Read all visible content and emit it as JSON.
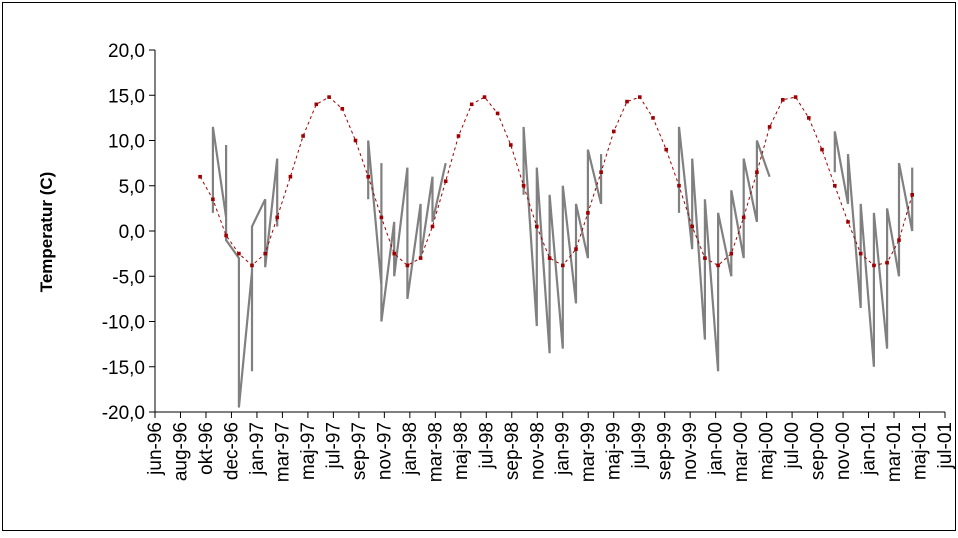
{
  "chart_data": {
    "type": "line",
    "title": "",
    "xlabel": "",
    "ylabel": "Temperatur (C)",
    "ylim": [
      -20,
      20
    ],
    "y_ticks": [
      20,
      15,
      10,
      5,
      0,
      -5,
      -10,
      -15,
      -20
    ],
    "y_tick_labels": [
      "20,0",
      "15,0",
      "10,0",
      "5,0",
      "0,0",
      "-5,0",
      "-10,0",
      "-15,0",
      "-20,0"
    ],
    "x_tick_labels": [
      "jun-96",
      "aug-96",
      "okt-96",
      "dec-96",
      "jan-97",
      "mar-97",
      "maj-97",
      "jul-97",
      "sep-97",
      "nov-97",
      "jan-98",
      "mar-98",
      "maj-98",
      "jul-98",
      "sep-98",
      "nov-98",
      "jan-99",
      "mar-99",
      "maj-99",
      "jul-99",
      "sep-99",
      "nov-99",
      "jan-00",
      "mar-00",
      "maj-00",
      "jul-00",
      "sep-00",
      "nov-00",
      "jan-01",
      "mar-01",
      "maj-01",
      "jul-01"
    ],
    "grid": false,
    "legend": "none",
    "colors": {
      "measured": "#808080",
      "model": "#a00000",
      "frame": "#000000"
    },
    "series": [
      {
        "style": "measured",
        "segments": [
          {
            "x": [
              "1996-10",
              "1996-10",
              "1996-11",
              "1996-11",
              "1996-11",
              "1996-12",
              "1996-12",
              "1996-12",
              "1997-01",
              "1997-01",
              "1997-01",
              "1997-02",
              "1997-02",
              "1997-03",
              "1997-03"
            ],
            "y": [
              2.0,
              11.5,
              1.5,
              9.5,
              -1.0,
              -3.0,
              -11.0,
              -19.5,
              -4.5,
              -15.5,
              0.5,
              3.5,
              -4.0,
              8.0,
              0.5
            ]
          },
          {
            "x": [
              "1997-10",
              "1997-10",
              "1997-11",
              "1997-11",
              "1997-11",
              "1997-12",
              "1997-12",
              "1998-01",
              "1998-01",
              "1998-02",
              "1998-02",
              "1998-03",
              "1998-03",
              "1998-04"
            ],
            "y": [
              3.5,
              10.0,
              -6.0,
              7.5,
              -10.0,
              1.0,
              -5.0,
              7.0,
              -7.5,
              3.0,
              -3.0,
              6.0,
              1.0,
              7.5
            ]
          },
          {
            "x": [
              "1998-10",
              "1998-10",
              "1998-11",
              "1998-11",
              "1998-12",
              "1998-12",
              "1999-01",
              "1999-01",
              "1999-02",
              "1999-02",
              "1999-03",
              "1999-03",
              "1999-04",
              "1999-04"
            ],
            "y": [
              4.0,
              11.5,
              -10.5,
              7.0,
              -13.5,
              4.0,
              -13.0,
              5.0,
              -8.0,
              3.0,
              -3.0,
              9.0,
              3.0,
              8.5
            ]
          },
          {
            "x": [
              "1999-10",
              "1999-10",
              "1999-11",
              "1999-11",
              "1999-12",
              "1999-12",
              "2000-01",
              "2000-01",
              "2000-02",
              "2000-02",
              "2000-03",
              "2000-03",
              "2000-04",
              "2000-04",
              "2000-05"
            ],
            "y": [
              2.0,
              11.5,
              -2.0,
              8.0,
              -12.0,
              3.5,
              -15.5,
              2.0,
              -5.0,
              4.5,
              -3.0,
              8.0,
              1.0,
              10.0,
              6.0
            ]
          },
          {
            "x": [
              "2000-10",
              "2000-10",
              "2000-11",
              "2000-11",
              "2000-12",
              "2000-12",
              "2001-01",
              "2001-01",
              "2001-02",
              "2001-02",
              "2001-03",
              "2001-03",
              "2001-04",
              "2001-04"
            ],
            "y": [
              6.5,
              11.0,
              3.0,
              8.5,
              -8.5,
              3.0,
              -15.0,
              2.0,
              -13.0,
              2.5,
              -5.0,
              7.5,
              0.0,
              7.0
            ]
          }
        ]
      },
      {
        "style": "model",
        "x": [
          "1996-09",
          "1996-10",
          "1996-11",
          "1996-12",
          "1997-01",
          "1997-02",
          "1997-03",
          "1997-04",
          "1997-05",
          "1997-06",
          "1997-07",
          "1997-08",
          "1997-09",
          "1997-10",
          "1997-11",
          "1997-12",
          "1998-01",
          "1998-02",
          "1998-03",
          "1998-04",
          "1998-05",
          "1998-06",
          "1998-07",
          "1998-08",
          "1998-09",
          "1998-10",
          "1998-11",
          "1998-12",
          "1999-01",
          "1999-02",
          "1999-03",
          "1999-04",
          "1999-05",
          "1999-06",
          "1999-07",
          "1999-08",
          "1999-09",
          "1999-10",
          "1999-11",
          "1999-12",
          "2000-01",
          "2000-02",
          "2000-03",
          "2000-04",
          "2000-05",
          "2000-06",
          "2000-07",
          "2000-08",
          "2000-09",
          "2000-10",
          "2000-11",
          "2000-12",
          "2001-01",
          "2001-02",
          "2001-03",
          "2001-04"
        ],
        "y": [
          6.0,
          3.5,
          -0.5,
          -2.5,
          -3.8,
          -2.5,
          1.5,
          6.0,
          10.5,
          14.0,
          14.8,
          13.5,
          10.0,
          6.0,
          1.5,
          -2.5,
          -3.8,
          -3.0,
          0.5,
          5.5,
          10.5,
          14.0,
          14.8,
          13.0,
          9.5,
          5.0,
          0.5,
          -3.0,
          -3.8,
          -2.0,
          2.0,
          6.5,
          11.0,
          14.3,
          14.8,
          12.5,
          9.0,
          5.0,
          0.5,
          -3.0,
          -3.8,
          -2.5,
          1.5,
          6.5,
          11.5,
          14.5,
          14.8,
          12.5,
          9.0,
          5.0,
          1.0,
          -2.5,
          -3.8,
          -3.5,
          -1.0,
          4.0
        ]
      }
    ]
  }
}
